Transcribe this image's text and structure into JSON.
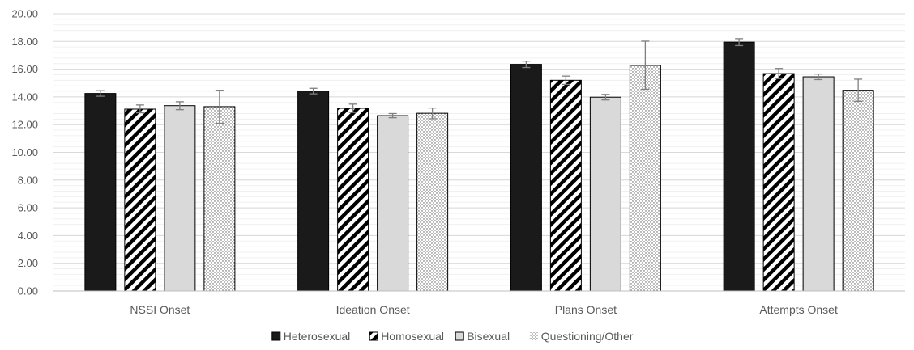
{
  "chart_data": {
    "type": "bar",
    "categories": [
      "NSSI Onset",
      "Ideation Onset",
      "Plans Onset",
      "Attempts Onset"
    ],
    "series": [
      {
        "name": "Heterosexual",
        "values": [
          14.25,
          14.42,
          16.35,
          17.95
        ],
        "error_low": [
          14.05,
          14.22,
          16.12,
          17.7
        ],
        "error_high": [
          14.45,
          14.62,
          16.58,
          18.2
        ],
        "fill": "#1a1a1a"
      },
      {
        "name": "Homosexual",
        "values": [
          13.12,
          13.18,
          15.2,
          15.68
        ],
        "error_low": [
          12.85,
          12.88,
          14.9,
          15.32
        ],
        "error_high": [
          13.42,
          13.48,
          15.5,
          16.05
        ],
        "fill": "hatch"
      },
      {
        "name": "Bisexual",
        "values": [
          13.37,
          12.65,
          13.98,
          15.45
        ],
        "error_low": [
          13.08,
          12.5,
          13.78,
          15.25
        ],
        "error_high": [
          13.65,
          12.8,
          14.18,
          15.65
        ],
        "fill": "#d9d9d9"
      },
      {
        "name": "Questioning/Other",
        "values": [
          13.3,
          12.82,
          16.27,
          14.48
        ],
        "error_low": [
          12.1,
          12.42,
          14.55,
          13.68
        ],
        "error_high": [
          14.48,
          13.2,
          18.02,
          15.28
        ],
        "fill": "dots"
      }
    ],
    "ylim": [
      0,
      20
    ],
    "yticks": [
      "0.00",
      "2.00",
      "4.00",
      "6.00",
      "8.00",
      "10.00",
      "12.00",
      "14.00",
      "16.00",
      "18.00",
      "20.00"
    ],
    "grid": true,
    "minor_grid": true,
    "legend_position": "bottom",
    "title": "",
    "xlabel": "",
    "ylabel": ""
  }
}
